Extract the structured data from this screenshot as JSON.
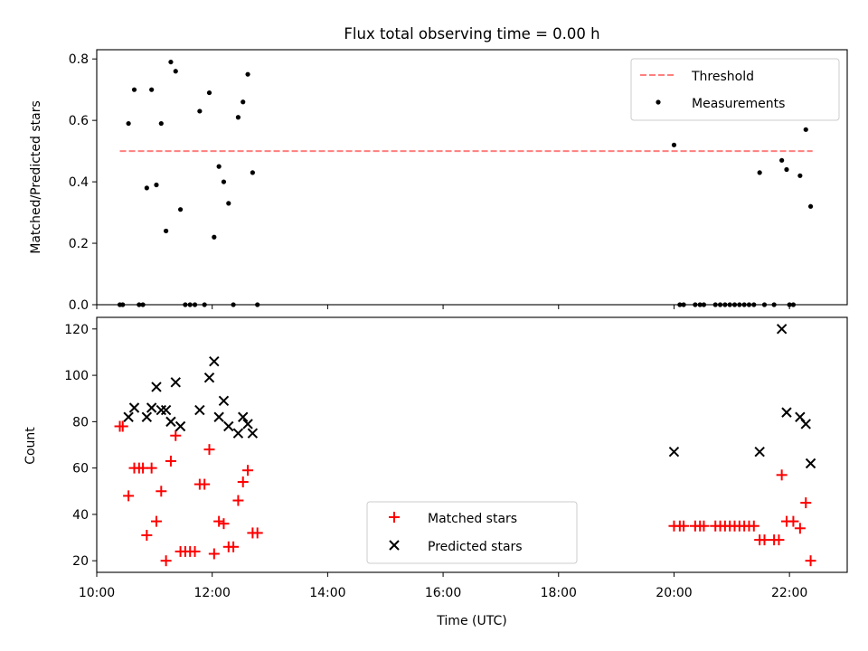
{
  "chart_data": [
    {
      "type": "scatter",
      "title": "Flux total observing time = 0.00 h",
      "xlabel": "",
      "ylabel": "Matched/Predicted stars",
      "xlim": [
        "10:00",
        "23:00"
      ],
      "ylim": [
        0,
        0.83
      ],
      "yticks": [
        "0.0",
        "0.2",
        "0.4",
        "0.6",
        "0.8"
      ],
      "legend": {
        "position": "top-right",
        "entries": [
          "Threshold",
          "Measurements"
        ]
      },
      "threshold": {
        "name": "Threshold",
        "y": 0.5,
        "x_start": "10:24",
        "x_end": "22:24",
        "color": "#ff7f7f",
        "style": "dashed"
      },
      "series": [
        {
          "name": "Measurements",
          "color": "#000000",
          "points": [
            [
              "10:24",
              0.0
            ],
            [
              "10:27",
              0.0
            ],
            [
              "10:33",
              0.59
            ],
            [
              "10:39",
              0.7
            ],
            [
              "10:44",
              0.0
            ],
            [
              "10:48",
              0.0
            ],
            [
              "10:52",
              0.38
            ],
            [
              "10:57",
              0.7
            ],
            [
              "11:02",
              0.39
            ],
            [
              "11:07",
              0.59
            ],
            [
              "11:12",
              0.24
            ],
            [
              "11:17",
              0.79
            ],
            [
              "11:22",
              0.76
            ],
            [
              "11:27",
              0.31
            ],
            [
              "11:32",
              0.0
            ],
            [
              "11:37",
              0.0
            ],
            [
              "11:42",
              0.0
            ],
            [
              "11:47",
              0.63
            ],
            [
              "11:52",
              0.0
            ],
            [
              "11:57",
              0.69
            ],
            [
              "12:02",
              0.22
            ],
            [
              "12:07",
              0.45
            ],
            [
              "12:12",
              0.4
            ],
            [
              "12:17",
              0.33
            ],
            [
              "12:22",
              0.0
            ],
            [
              "12:27",
              0.61
            ],
            [
              "12:32",
              0.66
            ],
            [
              "12:37",
              0.75
            ],
            [
              "12:42",
              0.43
            ],
            [
              "12:47",
              0.0
            ],
            [
              "20:00",
              0.52
            ],
            [
              "20:06",
              0.0
            ],
            [
              "20:10",
              0.0
            ],
            [
              "20:22",
              0.0
            ],
            [
              "20:27",
              0.0
            ],
            [
              "20:31",
              0.0
            ],
            [
              "20:43",
              0.0
            ],
            [
              "20:48",
              0.0
            ],
            [
              "20:53",
              0.0
            ],
            [
              "20:58",
              0.0
            ],
            [
              "21:03",
              0.0
            ],
            [
              "21:08",
              0.0
            ],
            [
              "21:13",
              0.0
            ],
            [
              "21:18",
              0.0
            ],
            [
              "21:23",
              0.0
            ],
            [
              "21:29",
              0.43
            ],
            [
              "21:34",
              0.0
            ],
            [
              "21:44",
              0.0
            ],
            [
              "21:52",
              0.47
            ],
            [
              "21:57",
              0.44
            ],
            [
              "22:00",
              0.0
            ],
            [
              "22:04",
              0.0
            ],
            [
              "22:11",
              0.42
            ],
            [
              "22:17",
              0.57
            ],
            [
              "22:22",
              0.32
            ]
          ]
        }
      ]
    },
    {
      "type": "scatter",
      "title": "",
      "xlabel": "Time (UTC)",
      "ylabel": "Count",
      "xlim": [
        "10:00",
        "23:00"
      ],
      "ylim": [
        15,
        125
      ],
      "xticks": [
        "10:00",
        "12:00",
        "14:00",
        "16:00",
        "18:00",
        "20:00",
        "22:00"
      ],
      "yticks": [
        "20",
        "40",
        "60",
        "80",
        "100",
        "120"
      ],
      "legend": {
        "position": "bottom-center",
        "entries": [
          "Matched stars",
          "Predicted stars"
        ]
      },
      "series": [
        {
          "name": "Matched stars",
          "marker": "plus",
          "color": "#ff0000",
          "points": [
            [
              "10:24",
              78
            ],
            [
              "10:27",
              78
            ],
            [
              "10:33",
              48
            ],
            [
              "10:39",
              60
            ],
            [
              "10:44",
              60
            ],
            [
              "10:48",
              60
            ],
            [
              "10:52",
              31
            ],
            [
              "10:57",
              60
            ],
            [
              "11:02",
              37
            ],
            [
              "11:07",
              50
            ],
            [
              "11:12",
              20
            ],
            [
              "11:17",
              63
            ],
            [
              "11:22",
              74
            ],
            [
              "11:27",
              24
            ],
            [
              "11:32",
              24
            ],
            [
              "11:37",
              24
            ],
            [
              "11:42",
              24
            ],
            [
              "11:47",
              53
            ],
            [
              "11:52",
              53
            ],
            [
              "11:57",
              68
            ],
            [
              "12:02",
              23
            ],
            [
              "12:07",
              37
            ],
            [
              "12:12",
              36
            ],
            [
              "12:17",
              26
            ],
            [
              "12:22",
              26
            ],
            [
              "12:27",
              46
            ],
            [
              "12:32",
              54
            ],
            [
              "12:37",
              59
            ],
            [
              "12:42",
              32
            ],
            [
              "12:47",
              32
            ],
            [
              "20:00",
              35
            ],
            [
              "20:06",
              35
            ],
            [
              "20:10",
              35
            ],
            [
              "20:22",
              35
            ],
            [
              "20:27",
              35
            ],
            [
              "20:31",
              35
            ],
            [
              "20:43",
              35
            ],
            [
              "20:48",
              35
            ],
            [
              "20:53",
              35
            ],
            [
              "20:58",
              35
            ],
            [
              "21:03",
              35
            ],
            [
              "21:08",
              35
            ],
            [
              "21:13",
              35
            ],
            [
              "21:18",
              35
            ],
            [
              "21:23",
              35
            ],
            [
              "21:29",
              29
            ],
            [
              "21:34",
              29
            ],
            [
              "21:44",
              29
            ],
            [
              "21:49",
              29
            ],
            [
              "21:52",
              57
            ],
            [
              "21:57",
              37
            ],
            [
              "22:04",
              37
            ],
            [
              "22:11",
              34
            ],
            [
              "22:17",
              45
            ],
            [
              "22:22",
              20
            ]
          ]
        },
        {
          "name": "Predicted stars",
          "marker": "x",
          "color": "#000000",
          "points": [
            [
              "10:33",
              82
            ],
            [
              "10:39",
              86
            ],
            [
              "10:52",
              82
            ],
            [
              "10:57",
              86
            ],
            [
              "11:02",
              95
            ],
            [
              "11:07",
              85
            ],
            [
              "11:12",
              85
            ],
            [
              "11:17",
              80
            ],
            [
              "11:22",
              97
            ],
            [
              "11:27",
              78
            ],
            [
              "11:47",
              85
            ],
            [
              "11:57",
              99
            ],
            [
              "12:02",
              106
            ],
            [
              "12:07",
              82
            ],
            [
              "12:12",
              89
            ],
            [
              "12:17",
              78
            ],
            [
              "12:27",
              75
            ],
            [
              "12:32",
              82
            ],
            [
              "12:37",
              79
            ],
            [
              "12:42",
              75
            ],
            [
              "20:00",
              67
            ],
            [
              "21:29",
              67
            ],
            [
              "21:52",
              120
            ],
            [
              "21:57",
              84
            ],
            [
              "22:11",
              82
            ],
            [
              "22:17",
              79
            ],
            [
              "22:22",
              62
            ]
          ]
        }
      ]
    }
  ]
}
